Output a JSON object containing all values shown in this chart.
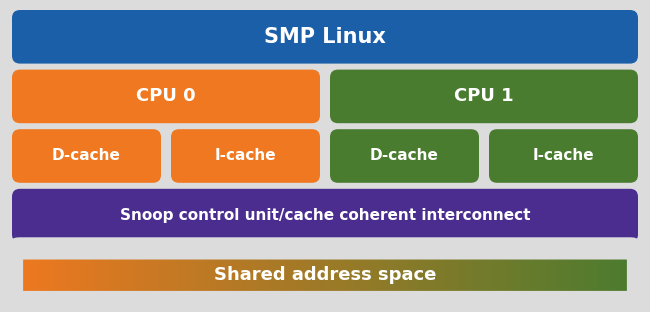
{
  "background_color": "#dcdcdc",
  "title": "SMP Linux",
  "title_bg": "#1a5fa8",
  "cpu0_label": "CPU 0",
  "cpu1_label": "CPU 1",
  "cpu0_color": "#f07820",
  "cpu1_color": "#4a7c2f",
  "dcache0_label": "D-cache",
  "icache0_label": "I-cache",
  "dcache1_label": "D-cache",
  "icache1_label": "I-cache",
  "cache0_color": "#f07820",
  "cache1_color": "#4a7c2f",
  "snoop_label": "Snoop control unit/cache coherent interconnect",
  "snoop_color": "#4a2d8f",
  "shared_label": "Shared address space",
  "shared_color_left": "#f07820",
  "shared_color_right": "#4a7c2f",
  "text_color": "#ffffff"
}
